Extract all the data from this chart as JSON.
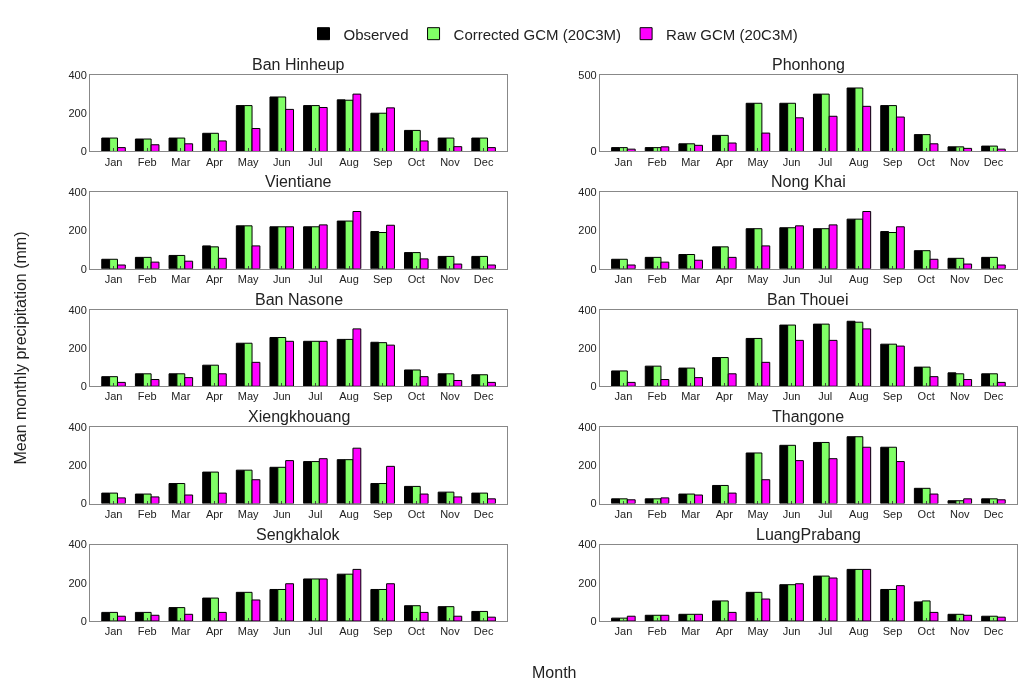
{
  "chart_data": [
    {
      "type": "bar",
      "title": "Ban Hinheup",
      "xlabel": "Month",
      "ylabel": "Mean monthly precipitation (mm)",
      "legend": "top",
      "categories": [
        "Jan",
        "Feb",
        "Mar",
        "Apr",
        "May",
        "Jun",
        "Jul",
        "Aug",
        "Sep",
        "Oct",
        "Nov",
        "Dec"
      ],
      "ylim": [
        0,
        400
      ],
      "yticks": [
        0,
        200,
        400
      ],
      "series": [
        {
          "name": "Observed",
          "color": "#000000",
          "values": [
            70,
            65,
            70,
            95,
            240,
            285,
            240,
            270,
            200,
            110,
            70,
            70
          ]
        },
        {
          "name": "Corrected GCM (20C3M)",
          "color": "#80ff66",
          "values": [
            70,
            65,
            70,
            95,
            240,
            285,
            240,
            268,
            200,
            110,
            70,
            70
          ]
        },
        {
          "name": "Raw GCM (20C3M)",
          "color": "#ff00ff",
          "values": [
            20,
            35,
            40,
            55,
            120,
            220,
            230,
            300,
            228,
            55,
            25,
            20
          ]
        }
      ]
    },
    {
      "type": "bar",
      "title": "Phonhong",
      "categories": [
        "Jan",
        "Feb",
        "Mar",
        "Apr",
        "May",
        "Jun",
        "Jul",
        "Aug",
        "Sep",
        "Oct",
        "Nov",
        "Dec"
      ],
      "ylim": [
        0,
        500
      ],
      "yticks": [
        0,
        500
      ],
      "series": [
        {
          "color": "#000000",
          "values": [
            25,
            25,
            50,
            105,
            315,
            315,
            375,
            415,
            300,
            110,
            30,
            35
          ]
        },
        {
          "color": "#80ff66",
          "values": [
            25,
            25,
            50,
            105,
            315,
            315,
            375,
            415,
            300,
            110,
            30,
            35
          ]
        },
        {
          "color": "#ff00ff",
          "values": [
            15,
            30,
            40,
            55,
            120,
            220,
            230,
            295,
            225,
            50,
            20,
            15
          ]
        }
      ]
    },
    {
      "type": "bar",
      "title": "Vientiane",
      "categories": [
        "Jan",
        "Feb",
        "Mar",
        "Apr",
        "May",
        "Jun",
        "Jul",
        "Aug",
        "Sep",
        "Oct",
        "Nov",
        "Dec"
      ],
      "ylim": [
        0,
        400
      ],
      "yticks": [
        0,
        200,
        400
      ],
      "series": [
        {
          "color": "#000000",
          "values": [
            50,
            60,
            70,
            120,
            225,
            220,
            220,
            250,
            195,
            85,
            65,
            65
          ]
        },
        {
          "color": "#80ff66",
          "values": [
            50,
            60,
            70,
            115,
            225,
            220,
            220,
            250,
            190,
            85,
            65,
            65
          ]
        },
        {
          "color": "#ff00ff",
          "values": [
            20,
            35,
            40,
            55,
            120,
            220,
            230,
            300,
            228,
            52,
            25,
            20
          ]
        }
      ]
    },
    {
      "type": "bar",
      "title": "Nong Khai",
      "categories": [
        "Jan",
        "Feb",
        "Mar",
        "Apr",
        "May",
        "Jun",
        "Jul",
        "Aug",
        "Sep",
        "Oct",
        "Nov",
        "Dec"
      ],
      "ylim": [
        0,
        400
      ],
      "yticks": [
        0,
        200,
        400
      ],
      "series": [
        {
          "color": "#000000",
          "values": [
            50,
            60,
            75,
            115,
            210,
            215,
            210,
            260,
            195,
            95,
            55,
            60
          ]
        },
        {
          "color": "#80ff66",
          "values": [
            50,
            60,
            75,
            115,
            210,
            215,
            210,
            260,
            190,
            95,
            55,
            60
          ]
        },
        {
          "color": "#ff00ff",
          "values": [
            20,
            35,
            45,
            60,
            120,
            225,
            230,
            300,
            220,
            50,
            25,
            20
          ]
        }
      ]
    },
    {
      "type": "bar",
      "title": "Ban Nasone",
      "categories": [
        "Jan",
        "Feb",
        "Mar",
        "Apr",
        "May",
        "Jun",
        "Jul",
        "Aug",
        "Sep",
        "Oct",
        "Nov",
        "Dec"
      ],
      "ylim": [
        0,
        400
      ],
      "yticks": [
        0,
        200,
        400
      ],
      "series": [
        {
          "color": "#000000",
          "values": [
            50,
            65,
            65,
            110,
            225,
            255,
            235,
            245,
            230,
            85,
            65,
            60
          ]
        },
        {
          "color": "#80ff66",
          "values": [
            50,
            65,
            65,
            110,
            225,
            255,
            235,
            245,
            228,
            85,
            65,
            60
          ]
        },
        {
          "color": "#ff00ff",
          "values": [
            20,
            35,
            45,
            65,
            125,
            235,
            235,
            300,
            215,
            50,
            30,
            20
          ]
        }
      ]
    },
    {
      "type": "bar",
      "title": "Ban Thouei",
      "categories": [
        "Jan",
        "Feb",
        "Mar",
        "Apr",
        "May",
        "Jun",
        "Jul",
        "Aug",
        "Sep",
        "Oct",
        "Nov",
        "Dec"
      ],
      "ylim": [
        0,
        400
      ],
      "yticks": [
        0,
        200,
        400
      ],
      "series": [
        {
          "color": "#000000",
          "values": [
            80,
            105,
            95,
            150,
            250,
            320,
            325,
            340,
            220,
            100,
            70,
            65
          ]
        },
        {
          "color": "#80ff66",
          "values": [
            80,
            105,
            95,
            150,
            250,
            320,
            325,
            335,
            220,
            100,
            65,
            65
          ]
        },
        {
          "color": "#ff00ff",
          "values": [
            20,
            35,
            45,
            65,
            125,
            240,
            240,
            300,
            210,
            50,
            35,
            20
          ]
        }
      ]
    },
    {
      "type": "bar",
      "title": "Xiengkhouang",
      "categories": [
        "Jan",
        "Feb",
        "Mar",
        "Apr",
        "May",
        "Jun",
        "Jul",
        "Aug",
        "Sep",
        "Oct",
        "Nov",
        "Dec"
      ],
      "ylim": [
        0,
        400
      ],
      "yticks": [
        0,
        200,
        400
      ],
      "series": [
        {
          "color": "#000000",
          "values": [
            55,
            50,
            105,
            165,
            175,
            190,
            220,
            230,
            105,
            90,
            60,
            55
          ]
        },
        {
          "color": "#80ff66",
          "values": [
            55,
            50,
            105,
            165,
            175,
            190,
            220,
            230,
            105,
            90,
            60,
            55
          ]
        },
        {
          "color": "#ff00ff",
          "values": [
            30,
            35,
            45,
            55,
            125,
            225,
            235,
            290,
            195,
            50,
            35,
            25
          ]
        }
      ]
    },
    {
      "type": "bar",
      "title": "Thangone",
      "categories": [
        "Jan",
        "Feb",
        "Mar",
        "Apr",
        "May",
        "Jun",
        "Jul",
        "Aug",
        "Sep",
        "Oct",
        "Nov",
        "Dec"
      ],
      "ylim": [
        0,
        400
      ],
      "yticks": [
        0,
        200,
        400
      ],
      "series": [
        {
          "color": "#000000",
          "values": [
            25,
            25,
            50,
            95,
            265,
            305,
            320,
            350,
            295,
            80,
            15,
            25
          ]
        },
        {
          "color": "#80ff66",
          "values": [
            25,
            25,
            50,
            95,
            265,
            305,
            320,
            350,
            295,
            80,
            15,
            25
          ]
        },
        {
          "color": "#ff00ff",
          "values": [
            20,
            30,
            45,
            55,
            125,
            225,
            235,
            295,
            220,
            50,
            25,
            20
          ]
        }
      ]
    },
    {
      "type": "bar",
      "title": "Sengkhalok",
      "categories": [
        "Jan",
        "Feb",
        "Mar",
        "Apr",
        "May",
        "Jun",
        "Jul",
        "Aug",
        "Sep",
        "Oct",
        "Nov",
        "Dec"
      ],
      "ylim": [
        0,
        400
      ],
      "yticks": [
        0,
        200,
        400
      ],
      "series": [
        {
          "color": "#000000",
          "values": [
            45,
            45,
            70,
            120,
            150,
            165,
            220,
            245,
            165,
            80,
            75,
            50
          ]
        },
        {
          "color": "#80ff66",
          "values": [
            45,
            45,
            70,
            120,
            150,
            165,
            220,
            245,
            165,
            80,
            75,
            50
          ]
        },
        {
          "color": "#ff00ff",
          "values": [
            25,
            30,
            35,
            45,
            110,
            195,
            220,
            270,
            195,
            45,
            25,
            20
          ]
        }
      ]
    },
    {
      "type": "bar",
      "title": "LuangPrabang",
      "categories": [
        "Jan",
        "Feb",
        "Mar",
        "Apr",
        "May",
        "Jun",
        "Jul",
        "Aug",
        "Sep",
        "Oct",
        "Nov",
        "Dec"
      ],
      "ylim": [
        0,
        400
      ],
      "yticks": [
        0,
        200,
        400
      ],
      "series": [
        {
          "color": "#000000",
          "values": [
            15,
            30,
            35,
            105,
            150,
            190,
            235,
            270,
            165,
            100,
            35,
            25
          ]
        },
        {
          "color": "#80ff66",
          "values": [
            15,
            30,
            35,
            105,
            150,
            190,
            235,
            270,
            165,
            105,
            35,
            25
          ]
        },
        {
          "color": "#ff00ff",
          "values": [
            25,
            30,
            35,
            45,
            115,
            195,
            225,
            270,
            185,
            45,
            30,
            20
          ]
        }
      ]
    }
  ]
}
